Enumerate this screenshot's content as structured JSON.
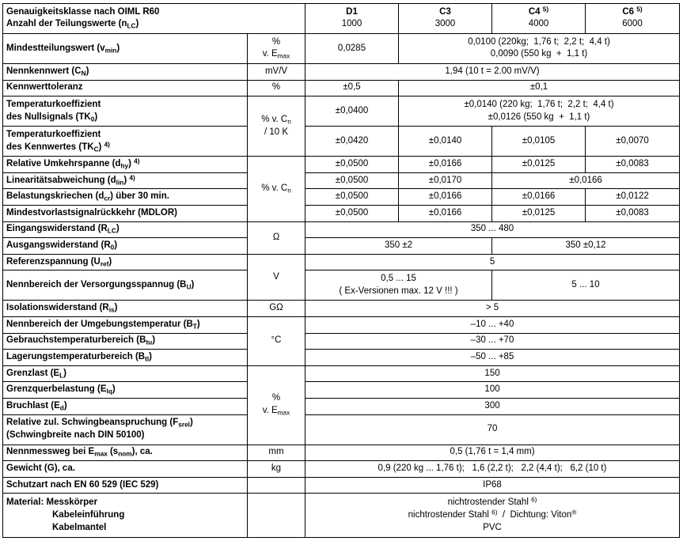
{
  "document": {
    "type": "load-cell-specification-table",
    "accent_color": "#000000",
    "background_color": "#ffffff"
  },
  "table": {
    "rows": [
      {
        "id": "genauigkeitsklasse-anzahl",
        "header": true,
        "label": {
          "span": 2,
          "lines": [
            "Genauigkeitsklasse nach OIML R60",
            "Anzahl der Teilungswerte (n_{LC})"
          ]
        },
        "cells": [
          {
            "span": 1,
            "lines": [
              "D1",
              "1000"
            ]
          },
          {
            "span": 1,
            "lines": [
              "C3",
              "3000"
            ]
          },
          {
            "span": 1,
            "lines": [
              "C4 ^{5)}",
              "4000"
            ]
          },
          {
            "span": 1,
            "lines": [
              "C6 ^{5)}",
              "6000"
            ]
          }
        ]
      },
      {
        "id": "mindestteilungswert",
        "label": {
          "span": 1,
          "lines": [
            "Mindestteilungswert (v_{min})"
          ]
        },
        "unit": {
          "rowspan": 1,
          "lines": [
            "%",
            "v. E_{max}"
          ]
        },
        "cells": [
          {
            "span": 1,
            "lines": [
              "0,0285"
            ]
          },
          {
            "span": 3,
            "lines": [
              "0,0100 (220kg;  1,76 t;  2,2 t;  4,4 t)",
              "0,0090 (550 kg  +  1,1 t)"
            ]
          }
        ]
      },
      {
        "id": "nennkennwert",
        "label": {
          "span": 1,
          "lines": [
            "Nennkennwert (C_{N})"
          ]
        },
        "unit": {
          "rowspan": 1,
          "lines": [
            "mV/V"
          ]
        },
        "cells": [
          {
            "span": 4,
            "lines": [
              "1,94 (10 t = 2.00 mV/V)"
            ]
          }
        ]
      },
      {
        "id": "kennwerttoleranz",
        "label": {
          "span": 1,
          "lines": [
            "Kennwerttoleranz"
          ]
        },
        "unit": {
          "rowspan": 1,
          "lines": [
            "%"
          ]
        },
        "cells": [
          {
            "span": 1,
            "lines": [
              "±0,5"
            ]
          },
          {
            "span": 3,
            "lines": [
              "±0,1"
            ]
          }
        ]
      },
      {
        "id": "tk-nullsignal",
        "label": {
          "span": 1,
          "lines": [
            "Temperaturkoeffizient",
            "des Nullsignals (TK_{0})"
          ]
        },
        "unit": {
          "rowspan": 2,
          "lines": [
            "% v. C_{n}",
            "/ 10 K"
          ]
        },
        "cells": [
          {
            "span": 1,
            "lines": [
              "±0,0400"
            ]
          },
          {
            "span": 3,
            "lines": [
              "±0,0140 (220 kg;  1,76 t;  2,2 t;  4,4 t)",
              "±0,0126 (550 kg  +  1,1 t)"
            ]
          }
        ]
      },
      {
        "id": "tk-kennwert",
        "label": {
          "span": 1,
          "lines": [
            "Temperaturkoeffizient",
            "des Kennwertes (TK_{C}) ^{4)}"
          ]
        },
        "cells": [
          {
            "span": 1,
            "lines": [
              "±0,0420"
            ]
          },
          {
            "span": 1,
            "lines": [
              "±0,0140"
            ]
          },
          {
            "span": 1,
            "lines": [
              "±0,0105"
            ]
          },
          {
            "span": 1,
            "lines": [
              "±0,0070"
            ]
          }
        ]
      },
      {
        "id": "umkehrspanne",
        "label": {
          "span": 1,
          "lines": [
            "Relative Umkehrspanne (d_{hy}) ^{4)}"
          ]
        },
        "unit": {
          "rowspan": 4,
          "lines": [
            "% v. C_{n}"
          ]
        },
        "cells": [
          {
            "span": 1,
            "lines": [
              "±0,0500"
            ]
          },
          {
            "span": 1,
            "lines": [
              "±0,0166"
            ]
          },
          {
            "span": 1,
            "lines": [
              "±0,0125"
            ]
          },
          {
            "span": 1,
            "lines": [
              "±0,0083"
            ]
          }
        ]
      },
      {
        "id": "linearitaetsabweichung",
        "label": {
          "span": 1,
          "lines": [
            "Linearitätsabweichung (d_{lin}) ^{4)}"
          ]
        },
        "cells": [
          {
            "span": 1,
            "lines": [
              "±0,0500"
            ]
          },
          {
            "span": 1,
            "lines": [
              "±0,0170"
            ]
          },
          {
            "span": 2,
            "lines": [
              "±0,0166"
            ]
          }
        ]
      },
      {
        "id": "belastungskriechen",
        "label": {
          "span": 1,
          "lines": [
            "Belastungskriechen (d_{cr}) über 30 min."
          ]
        },
        "cells": [
          {
            "span": 1,
            "lines": [
              "±0,0500"
            ]
          },
          {
            "span": 1,
            "lines": [
              "±0,0166"
            ]
          },
          {
            "span": 1,
            "lines": [
              "±0,0166"
            ]
          },
          {
            "span": 1,
            "lines": [
              "±0,0122"
            ]
          }
        ]
      },
      {
        "id": "mdlor",
        "label": {
          "span": 1,
          "lines": [
            "Mindestvorlastsignalrückkehr (MDLOR)"
          ]
        },
        "cells": [
          {
            "span": 1,
            "lines": [
              "±0,0500"
            ]
          },
          {
            "span": 1,
            "lines": [
              "±0,0166"
            ]
          },
          {
            "span": 1,
            "lines": [
              "±0,0125"
            ]
          },
          {
            "span": 1,
            "lines": [
              "±0,0083"
            ]
          }
        ]
      },
      {
        "id": "eingangswiderstand",
        "label": {
          "span": 1,
          "lines": [
            "Eingangswiderstand (R_{LC})"
          ]
        },
        "unit": {
          "rowspan": 2,
          "lines": [
            "Ω"
          ]
        },
        "cells": [
          {
            "span": 4,
            "lines": [
              "350 ... 480"
            ]
          }
        ]
      },
      {
        "id": "ausgangswiderstand",
        "label": {
          "span": 1,
          "lines": [
            "Ausgangswiderstand (R_{0})"
          ]
        },
        "cells": [
          {
            "span": 2,
            "lines": [
              "350 ±2"
            ]
          },
          {
            "span": 2,
            "lines": [
              "350 ±0,12"
            ]
          }
        ]
      },
      {
        "id": "referenzspannung",
        "label": {
          "span": 1,
          "lines": [
            "Referenzspannung (U_{ref})"
          ]
        },
        "unit": {
          "rowspan": 2,
          "lines": [
            "V"
          ]
        },
        "cells": [
          {
            "span": 4,
            "lines": [
              "5"
            ]
          }
        ]
      },
      {
        "id": "versorgungsspannung",
        "label": {
          "span": 1,
          "lines": [
            "Nennbereich der Versorgungsspannug (B_{U})"
          ]
        },
        "cells": [
          {
            "span": 2,
            "lines": [
              "0,5 ... 15",
              "( Ex-Versionen max. 12 V !!! )"
            ]
          },
          {
            "span": 2,
            "lines": [
              "5 ... 10"
            ]
          }
        ]
      },
      {
        "id": "isolationswiderstand",
        "label": {
          "span": 1,
          "lines": [
            "Isolationswiderstand (R_{is})"
          ]
        },
        "unit": {
          "rowspan": 1,
          "lines": [
            "GΩ"
          ]
        },
        "cells": [
          {
            "span": 4,
            "lines": [
              "> 5"
            ]
          }
        ]
      },
      {
        "id": "umgebungstemperatur",
        "label": {
          "span": 1,
          "lines": [
            "Nennbereich der Umgebungstemperatur (B_{T})"
          ]
        },
        "unit": {
          "rowspan": 3,
          "lines": [
            "°C"
          ]
        },
        "cells": [
          {
            "span": 4,
            "lines": [
              "–10 ... +40"
            ]
          }
        ]
      },
      {
        "id": "gebrauchstemperatur",
        "label": {
          "span": 1,
          "lines": [
            "Gebrauchstemperaturbereich (B_{tu})"
          ]
        },
        "cells": [
          {
            "span": 4,
            "lines": [
              "–30 ... +70"
            ]
          }
        ]
      },
      {
        "id": "lagerungstemperatur",
        "label": {
          "span": 1,
          "lines": [
            "Lagerungstemperaturbereich (B_{tl})"
          ]
        },
        "cells": [
          {
            "span": 4,
            "lines": [
              "–50 ... +85"
            ]
          }
        ]
      },
      {
        "id": "grenzlast",
        "label": {
          "span": 1,
          "lines": [
            "Grenzlast (E_{L})"
          ]
        },
        "unit": {
          "rowspan": 4,
          "lines": [
            "%",
            "v. E_{max}"
          ]
        },
        "cells": [
          {
            "span": 4,
            "lines": [
              "150"
            ]
          }
        ]
      },
      {
        "id": "grenzquerbelastung",
        "label": {
          "span": 1,
          "lines": [
            "Grenzquerbelastung (E_{lq})"
          ]
        },
        "cells": [
          {
            "span": 4,
            "lines": [
              "100"
            ]
          }
        ]
      },
      {
        "id": "bruchlast",
        "label": {
          "span": 1,
          "lines": [
            "Bruchlast (E_{d})"
          ]
        },
        "cells": [
          {
            "span": 4,
            "lines": [
              "300"
            ]
          }
        ]
      },
      {
        "id": "schwingbeanspruchung",
        "label": {
          "span": 1,
          "lines": [
            "Relative zul. Schwingbeanspruchung (F_{srel})",
            "(Schwingbreite nach DIN 50100)"
          ]
        },
        "cells": [
          {
            "span": 4,
            "lines": [
              "70"
            ]
          }
        ]
      },
      {
        "id": "nennmessweg",
        "label": {
          "span": 1,
          "lines": [
            "Nennmessweg bei E_{max} (s_{nom}), ca."
          ]
        },
        "unit": {
          "rowspan": 1,
          "lines": [
            "mm"
          ]
        },
        "cells": [
          {
            "span": 4,
            "lines": [
              "0,5 (1,76 t = 1,4 mm)"
            ]
          }
        ]
      },
      {
        "id": "gewicht",
        "label": {
          "span": 1,
          "lines": [
            "Gewicht (G), ca."
          ]
        },
        "unit": {
          "rowspan": 1,
          "lines": [
            "kg"
          ]
        },
        "cells": [
          {
            "span": 4,
            "lines": [
              "0,9 (220 kg ... 1,76 t);   1,6 (2,2 t);   2,2 (4,4 t);   6,2 (10 t)"
            ]
          }
        ]
      },
      {
        "id": "schutzart",
        "label": {
          "span": 1,
          "lines": [
            "Schutzart nach EN 60 529 (IEC 529)"
          ]
        },
        "unit": {
          "rowspan": 1,
          "lines": [
            ""
          ]
        },
        "cells": [
          {
            "span": 4,
            "lines": [
              "IP68"
            ]
          }
        ]
      },
      {
        "id": "material",
        "label": {
          "span": 1,
          "lines": [
            "Material: Messkörper",
            "Kabeleinführung",
            "Kabelmantel"
          ],
          "indent": [
            1,
            2
          ]
        },
        "unit": {
          "rowspan": 1,
          "lines": [
            ""
          ]
        },
        "cells": [
          {
            "span": 4,
            "lines": [
              "nichtrostender Stahl ^{6)}",
              "nichtrostender Stahl ^{6)}  /  Dichtung: Viton^{®}",
              "PVC"
            ]
          }
        ]
      }
    ]
  }
}
